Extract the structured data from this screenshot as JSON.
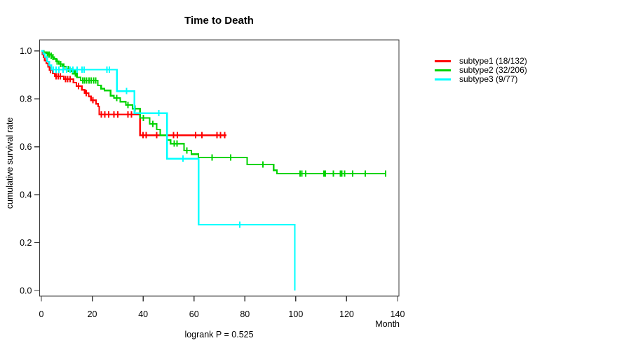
{
  "title": "Time to Death",
  "annotation": "logrank P = 0.525",
  "colors": {
    "subtype1": "#ff0000",
    "subtype2": "#00d300",
    "subtype3": "#00ffff",
    "axis": "#3a3a3a",
    "text": "#000000",
    "background": "#ffffff"
  },
  "axes": {
    "x": {
      "label": "Month",
      "tick_values": [
        0,
        20,
        40,
        60,
        80,
        100,
        120,
        140
      ],
      "tick_labels": [
        "0",
        "20",
        "40",
        "60",
        "80",
        "100",
        "120",
        "140"
      ]
    },
    "y": {
      "label": "cumulative survival rate",
      "tick_values": [
        0.0,
        0.2,
        0.4,
        0.6,
        0.8,
        1.0
      ],
      "tick_labels": [
        "0.0",
        "0.2",
        "0.4",
        "0.6",
        "0.8",
        "1.0"
      ]
    }
  },
  "legend": {
    "position": "right-outside",
    "items": [
      {
        "name": "subtype1",
        "label": "subtype1 (18/132)",
        "color": "#ff0000"
      },
      {
        "name": "subtype2",
        "label": "subtype2 (32/206)",
        "color": "#00d300"
      },
      {
        "name": "subtype3",
        "label": "subtype3 (9/77)",
        "color": "#00ffff"
      }
    ]
  },
  "chart_data": {
    "type": "line",
    "variant": "kaplan-meier-step",
    "title": "Time to Death",
    "xlabel": "Month",
    "ylabel": "cumulative survival rate",
    "xlim": [
      0,
      143
    ],
    "ylim": [
      0.0,
      1.0
    ],
    "grid": false,
    "legend_position": "right-outside",
    "annotation": "logrank P = 0.525",
    "series": [
      {
        "name": "subtype1",
        "events_over_n": "18/132",
        "color": "#ff0000",
        "end_time": 72.7,
        "steps": [
          [
            0,
            1.0
          ],
          [
            0.4,
            0.985
          ],
          [
            0.9,
            0.973
          ],
          [
            1.3,
            0.96
          ],
          [
            1.9,
            0.948
          ],
          [
            2.6,
            0.934
          ],
          [
            3.2,
            0.92
          ],
          [
            4.4,
            0.906
          ],
          [
            5.2,
            0.894
          ],
          [
            8.8,
            0.882
          ],
          [
            12.6,
            0.868
          ],
          [
            13.8,
            0.853
          ],
          [
            15.9,
            0.838
          ],
          [
            17.0,
            0.824
          ],
          [
            18.6,
            0.81
          ],
          [
            19.5,
            0.794
          ],
          [
            21.5,
            0.779
          ],
          [
            22.3,
            0.768
          ],
          [
            22.7,
            0.735
          ],
          [
            38.8,
            0.648
          ]
        ],
        "censors": [
          [
            3.6,
            0.92
          ],
          [
            5.8,
            0.894
          ],
          [
            6.6,
            0.894
          ],
          [
            7.4,
            0.894
          ],
          [
            9.5,
            0.882
          ],
          [
            10.4,
            0.882
          ],
          [
            11.3,
            0.882
          ],
          [
            14.6,
            0.853
          ],
          [
            17.6,
            0.824
          ],
          [
            20.3,
            0.794
          ],
          [
            23.6,
            0.735
          ],
          [
            25.0,
            0.735
          ],
          [
            26.4,
            0.735
          ],
          [
            28.5,
            0.735
          ],
          [
            30.0,
            0.735
          ],
          [
            34.0,
            0.735
          ],
          [
            35.4,
            0.735
          ],
          [
            39.9,
            0.648
          ],
          [
            41.2,
            0.648
          ],
          [
            45.3,
            0.648
          ],
          [
            52.0,
            0.648
          ],
          [
            53.5,
            0.648
          ],
          [
            60.6,
            0.648
          ],
          [
            63.1,
            0.648
          ],
          [
            69.1,
            0.648
          ],
          [
            70.4,
            0.648
          ],
          [
            72.0,
            0.648
          ]
        ]
      },
      {
        "name": "subtype2",
        "events_over_n": "32/206",
        "color": "#00d300",
        "end_time": 135.3,
        "steps": [
          [
            0,
            1.0
          ],
          [
            0.9,
            0.995
          ],
          [
            1.8,
            0.99
          ],
          [
            2.8,
            0.985
          ],
          [
            3.7,
            0.98
          ],
          [
            4.3,
            0.974
          ],
          [
            5.1,
            0.966
          ],
          [
            5.8,
            0.956
          ],
          [
            6.9,
            0.945
          ],
          [
            8.3,
            0.935
          ],
          [
            9.8,
            0.925
          ],
          [
            11.6,
            0.915
          ],
          [
            12.8,
            0.905
          ],
          [
            14.0,
            0.89
          ],
          [
            15.4,
            0.876
          ],
          [
            22.2,
            0.856
          ],
          [
            23.5,
            0.842
          ],
          [
            24.8,
            0.835
          ],
          [
            27.2,
            0.813
          ],
          [
            28.5,
            0.803
          ],
          [
            31.0,
            0.788
          ],
          [
            33.2,
            0.774
          ],
          [
            35.8,
            0.759
          ],
          [
            38.8,
            0.72
          ],
          [
            42.6,
            0.695
          ],
          [
            45.3,
            0.672
          ],
          [
            46.7,
            0.648
          ],
          [
            49.4,
            0.628
          ],
          [
            50.8,
            0.613
          ],
          [
            56.1,
            0.584
          ],
          [
            59.0,
            0.569
          ],
          [
            61.7,
            0.555
          ],
          [
            80.9,
            0.526
          ],
          [
            91.3,
            0.502
          ],
          [
            92.6,
            0.488
          ]
        ],
        "censors": [
          [
            2.3,
            0.985
          ],
          [
            3.0,
            0.985
          ],
          [
            3.9,
            0.98
          ],
          [
            4.6,
            0.974
          ],
          [
            6.2,
            0.956
          ],
          [
            7.6,
            0.945
          ],
          [
            8.8,
            0.935
          ],
          [
            10.6,
            0.925
          ],
          [
            12.2,
            0.915
          ],
          [
            13.4,
            0.905
          ],
          [
            16.2,
            0.876
          ],
          [
            17.0,
            0.876
          ],
          [
            17.8,
            0.876
          ],
          [
            18.7,
            0.876
          ],
          [
            19.6,
            0.876
          ],
          [
            20.5,
            0.876
          ],
          [
            21.3,
            0.876
          ],
          [
            29.6,
            0.803
          ],
          [
            34.1,
            0.774
          ],
          [
            36.8,
            0.759
          ],
          [
            40.1,
            0.72
          ],
          [
            43.8,
            0.695
          ],
          [
            52.2,
            0.613
          ],
          [
            53.3,
            0.613
          ],
          [
            57.2,
            0.584
          ],
          [
            67.1,
            0.555
          ],
          [
            74.4,
            0.555
          ],
          [
            87.1,
            0.526
          ],
          [
            101.7,
            0.488
          ],
          [
            102.4,
            0.488
          ],
          [
            103.9,
            0.488
          ],
          [
            111.0,
            0.488
          ],
          [
            111.6,
            0.488
          ],
          [
            114.8,
            0.488
          ],
          [
            117.5,
            0.488
          ],
          [
            118.1,
            0.488
          ],
          [
            119.2,
            0.488
          ],
          [
            122.4,
            0.488
          ],
          [
            127.3,
            0.488
          ],
          [
            135.3,
            0.488
          ]
        ]
      },
      {
        "name": "subtype3",
        "events_over_n": "9/77",
        "color": "#00ffff",
        "end_time": 99.6,
        "steps": [
          [
            0,
            1.0
          ],
          [
            0.7,
            0.987
          ],
          [
            1.4,
            0.974
          ],
          [
            2.3,
            0.955
          ],
          [
            3.1,
            0.94
          ],
          [
            3.9,
            0.922
          ],
          [
            29.7,
            0.832
          ],
          [
            36.6,
            0.74
          ],
          [
            49.4,
            0.55
          ],
          [
            61.8,
            0.275
          ],
          [
            99.6,
            0.0
          ]
        ],
        "censors": [
          [
            4.7,
            0.922
          ],
          [
            5.8,
            0.922
          ],
          [
            6.9,
            0.922
          ],
          [
            8.5,
            0.922
          ],
          [
            9.9,
            0.922
          ],
          [
            11.3,
            0.922
          ],
          [
            12.4,
            0.922
          ],
          [
            14.0,
            0.922
          ],
          [
            16.0,
            0.922
          ],
          [
            16.8,
            0.922
          ],
          [
            25.7,
            0.922
          ],
          [
            26.8,
            0.922
          ],
          [
            33.5,
            0.832
          ],
          [
            46.2,
            0.74
          ],
          [
            55.7,
            0.55
          ],
          [
            78.0,
            0.275
          ]
        ]
      }
    ]
  }
}
